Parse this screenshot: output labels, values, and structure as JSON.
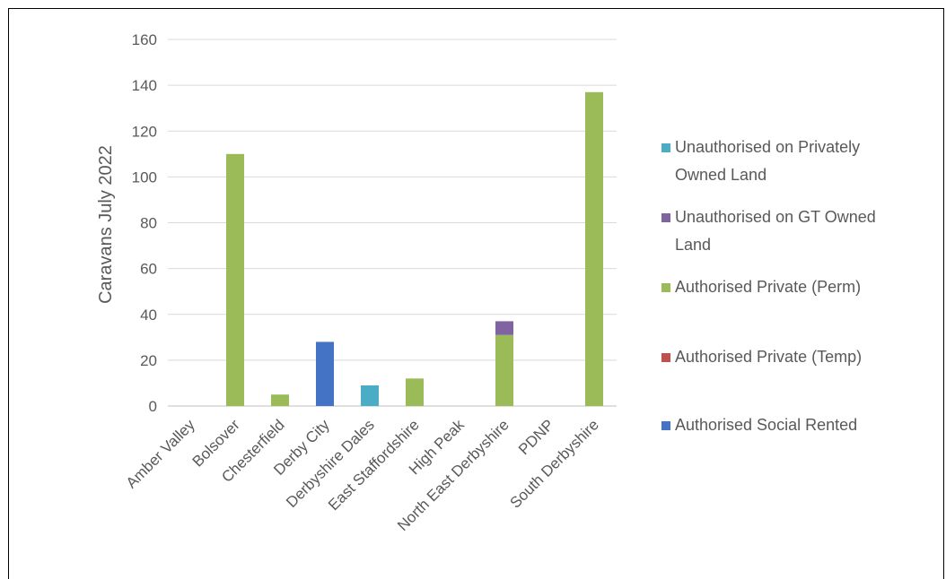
{
  "chart_data": {
    "type": "bar",
    "stacked": true,
    "title": "",
    "xlabel": "",
    "ylabel": "Caravans July 2022",
    "ylim": [
      0,
      160
    ],
    "yticks": [
      0,
      20,
      40,
      60,
      80,
      100,
      120,
      140,
      160
    ],
    "grid": true,
    "legend_position": "right",
    "categories": [
      "Amber Valley",
      "Bolsover",
      "Chesterfield",
      "Derby City",
      "Derbyshire Dales",
      "East Staffordshire",
      "High Peak",
      "North East Derbyshire",
      "PDNP",
      "South Derbyshire"
    ],
    "series": [
      {
        "name": "Authorised Social Rented",
        "color": "#4472C4",
        "values": [
          0,
          0,
          0,
          28,
          0,
          0,
          0,
          0,
          0,
          0
        ]
      },
      {
        "name": "Authorised Private (Temp)",
        "color": "#C0504D",
        "values": [
          0,
          0,
          0,
          0,
          0,
          0,
          0,
          0,
          0,
          0
        ]
      },
      {
        "name": "Authorised Private (Perm)",
        "color": "#9BBB59",
        "values": [
          0,
          110,
          5,
          0,
          0,
          12,
          0,
          31,
          0,
          137
        ]
      },
      {
        "name": "Unauthorised on GT Owned Land",
        "color": "#8064A2",
        "values": [
          0,
          0,
          0,
          0,
          0,
          0,
          0,
          6,
          0,
          0
        ]
      },
      {
        "name": "Unauthorised on Privately Owned Land",
        "color": "#4BACC6",
        "values": [
          0,
          0,
          0,
          0,
          9,
          0,
          0,
          0,
          0,
          0
        ]
      }
    ],
    "legend_order": [
      {
        "lines": [
          "Unauthorised on Privately",
          "Owned Land"
        ],
        "color": "#4BACC6"
      },
      {
        "lines": [
          "Unauthorised on GT Owned",
          "Land"
        ],
        "color": "#8064A2"
      },
      {
        "lines": [
          "Authorised Private (Perm)"
        ],
        "color": "#9BBB59"
      },
      {
        "lines": [
          "Authorised Private (Temp)"
        ],
        "color": "#C0504D"
      },
      {
        "lines": [
          "Authorised Social Rented"
        ],
        "color": "#4472C4"
      }
    ]
  }
}
